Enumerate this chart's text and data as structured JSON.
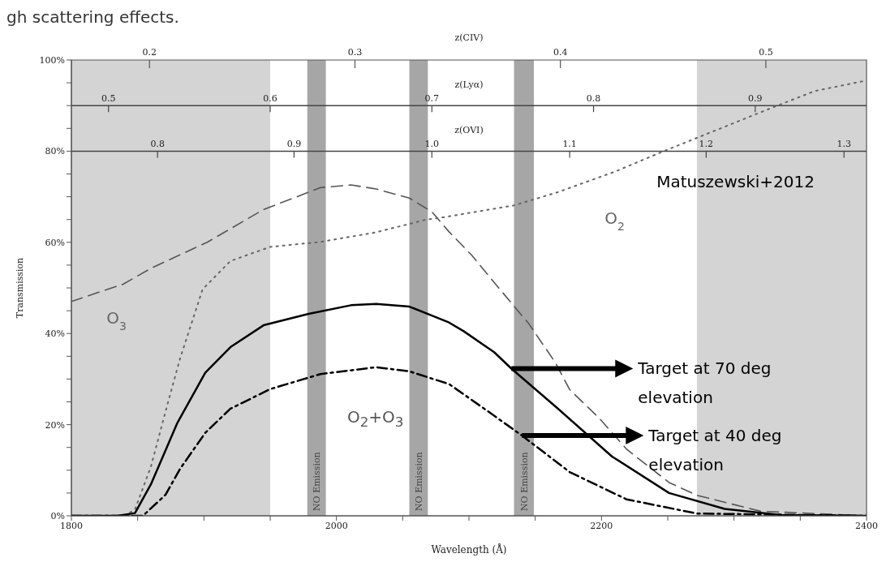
{
  "chart_data": {
    "type": "line",
    "xlabel": "Wavelength (Å)",
    "ylabel": "Transmission",
    "x2label": "z(CIV)",
    "xlim": [
      1800,
      2400
    ],
    "xticks": [
      1800,
      {
        "value": 1850,
        "label": null
      },
      {
        "value": 1900,
        "label": null
      },
      {
        "value": 1950,
        "label": null
      },
      2000,
      {
        "value": 2050,
        "label": null
      },
      {
        "value": 2100,
        "label": null
      },
      {
        "value": 2150,
        "label": null
      },
      2200,
      {
        "value": 2250,
        "label": null
      },
      {
        "value": 2300,
        "label": null
      },
      {
        "value": 2350,
        "label": null
      },
      2400
    ],
    "x2lim": [
      0.162,
      0.549
    ],
    "x2ticks": [
      0.2,
      0.3,
      0.4,
      0.5
    ],
    "ylim": [
      0,
      100
    ],
    "yticks": [
      {
        "value": 0,
        "label": "0%"
      },
      {
        "value": 5,
        "label": null
      },
      {
        "value": 10,
        "label": null
      },
      {
        "value": 15,
        "label": null
      },
      {
        "value": 20,
        "label": "20%"
      },
      {
        "value": 25,
        "label": null
      },
      {
        "value": 30,
        "label": null
      },
      {
        "value": 35,
        "label": null
      },
      {
        "value": 40,
        "label": "40%"
      },
      {
        "value": 45,
        "label": null
      },
      {
        "value": 50,
        "label": null
      },
      {
        "value": 55,
        "label": null
      },
      {
        "value": 60,
        "label": "60%"
      },
      {
        "value": 65,
        "label": null
      },
      {
        "value": 70,
        "label": null
      },
      {
        "value": 75,
        "label": null
      },
      {
        "value": 80,
        "label": "80%"
      },
      {
        "value": 85,
        "label": null
      },
      {
        "value": 90,
        "label": null
      },
      {
        "value": 95,
        "label": null
      },
      {
        "value": 100,
        "label": "100%"
      }
    ],
    "marker": "none",
    "legend": "right",
    "bands": [
      {
        "axis": "x",
        "from": 1800,
        "to": 1950,
        "color": "#d4d4d4"
      },
      {
        "axis": "x",
        "from": 2272,
        "to": 2400,
        "color": "#d4d4d4"
      },
      {
        "axis": "x",
        "from": 1978,
        "to": 1992,
        "color": "#a6a6a6",
        "label": "NO Emission"
      },
      {
        "axis": "x",
        "from": 2055,
        "to": 2069,
        "color": "#a6a6a6",
        "label": "NO Emission"
      },
      {
        "axis": "x",
        "from": 2134,
        "to": 2149,
        "color": "#a6a6a6",
        "label": "NO Emission"
      }
    ],
    "ref_lines": [
      {
        "axis": "y",
        "value": 90,
        "label": "z(Lyα)",
        "color": "#444444"
      },
      {
        "axis": "y",
        "value": 80,
        "label": "z(OVI)",
        "color": "#444444"
      }
    ],
    "series": [
      {
        "name": "O$_{3}$",
        "color": "#555555",
        "line_style": "dashed",
        "x": [
          1800,
          1818,
          1839,
          1860,
          1903,
          1945,
          1988,
          2011,
          2030,
          2055,
          2072,
          2085,
          2102,
          2123,
          2145,
          2165,
          2176,
          2198,
          2219,
          2251,
          2272,
          2320,
          2400
        ],
        "values": [
          47,
          48.8,
          50.8,
          54.3,
          60.1,
          67.2,
          72,
          72.6,
          71.7,
          69.7,
          66.7,
          62.3,
          57.2,
          49.8,
          42.2,
          33.7,
          27.7,
          21.5,
          14.6,
          7.3,
          4.5,
          1,
          0
        ]
      },
      {
        "name": "O$_{2}$",
        "color": "#666666",
        "line_style": "dotted",
        "x": [
          1840,
          1848,
          1860,
          1873,
          1882,
          1899,
          1920,
          1950,
          1988,
          2030,
          2068,
          2081,
          2134,
          2167,
          2210,
          2247,
          2331,
          2361,
          2400
        ],
        "values": [
          0,
          1.4,
          10.8,
          25,
          34.5,
          49.7,
          55.9,
          59,
          60.1,
          62.2,
          65,
          65.5,
          68.1,
          71,
          75.5,
          80,
          89.8,
          93.2,
          95.5
        ]
      },
      {
        "name": "Target at 70 deg elevation",
        "color": "#000000",
        "line_style": "solid",
        "x": [
          1800,
          1835,
          1848,
          1860,
          1880,
          1901,
          1920,
          1945,
          1979,
          2011,
          2030,
          2055,
          2085,
          2096,
          2119,
          2132,
          2166,
          2208,
          2251,
          2293,
          2335,
          2400
        ],
        "values": [
          0,
          0,
          0.6,
          6.9,
          20.4,
          31.4,
          37,
          41.8,
          44.3,
          46.2,
          46.5,
          45.9,
          42.4,
          40.5,
          35.9,
          32.3,
          23.8,
          13,
          5,
          1.5,
          0.2,
          0
        ]
      },
      {
        "name": "Target at 40 deg elevation",
        "color": "#000000",
        "line_style": "dashdot",
        "x": [
          1800,
          1854,
          1871,
          1882,
          1901,
          1920,
          1950,
          1988,
          2030,
          2055,
          2085,
          2113,
          2140,
          2176,
          2219,
          2272,
          2400
        ],
        "values": [
          0,
          0,
          4.6,
          10.3,
          18.2,
          23.5,
          27.8,
          31.1,
          32.6,
          31.7,
          28.9,
          23.2,
          17.6,
          9.6,
          3.6,
          0.5,
          0
        ]
      }
    ],
    "annotations": [
      "gh scattering effects.",
      "Matuszewski+2012",
      "O$_{2}$+O$_{3}$",
      {
        "text": "0.5",
        "x": 1828,
        "y": 90
      },
      {
        "text": "0.6",
        "x": 1950,
        "y": 90
      },
      {
        "text": "0.7",
        "x": 2072,
        "y": 90
      },
      {
        "text": "0.8",
        "x": 2194,
        "y": 90
      },
      {
        "text": "0.9",
        "x": 2316,
        "y": 90
      },
      {
        "text": "0.8",
        "x": 1865,
        "y": 80
      },
      {
        "text": "0.9",
        "x": 1968,
        "y": 80
      },
      {
        "text": "1.0",
        "x": 2072,
        "y": 80
      },
      {
        "text": "1.1",
        "x": 2176,
        "y": 80
      },
      {
        "text": "1.2",
        "x": 2279,
        "y": 80
      },
      {
        "text": "1.3",
        "x": 2383,
        "y": 80
      }
    ]
  }
}
